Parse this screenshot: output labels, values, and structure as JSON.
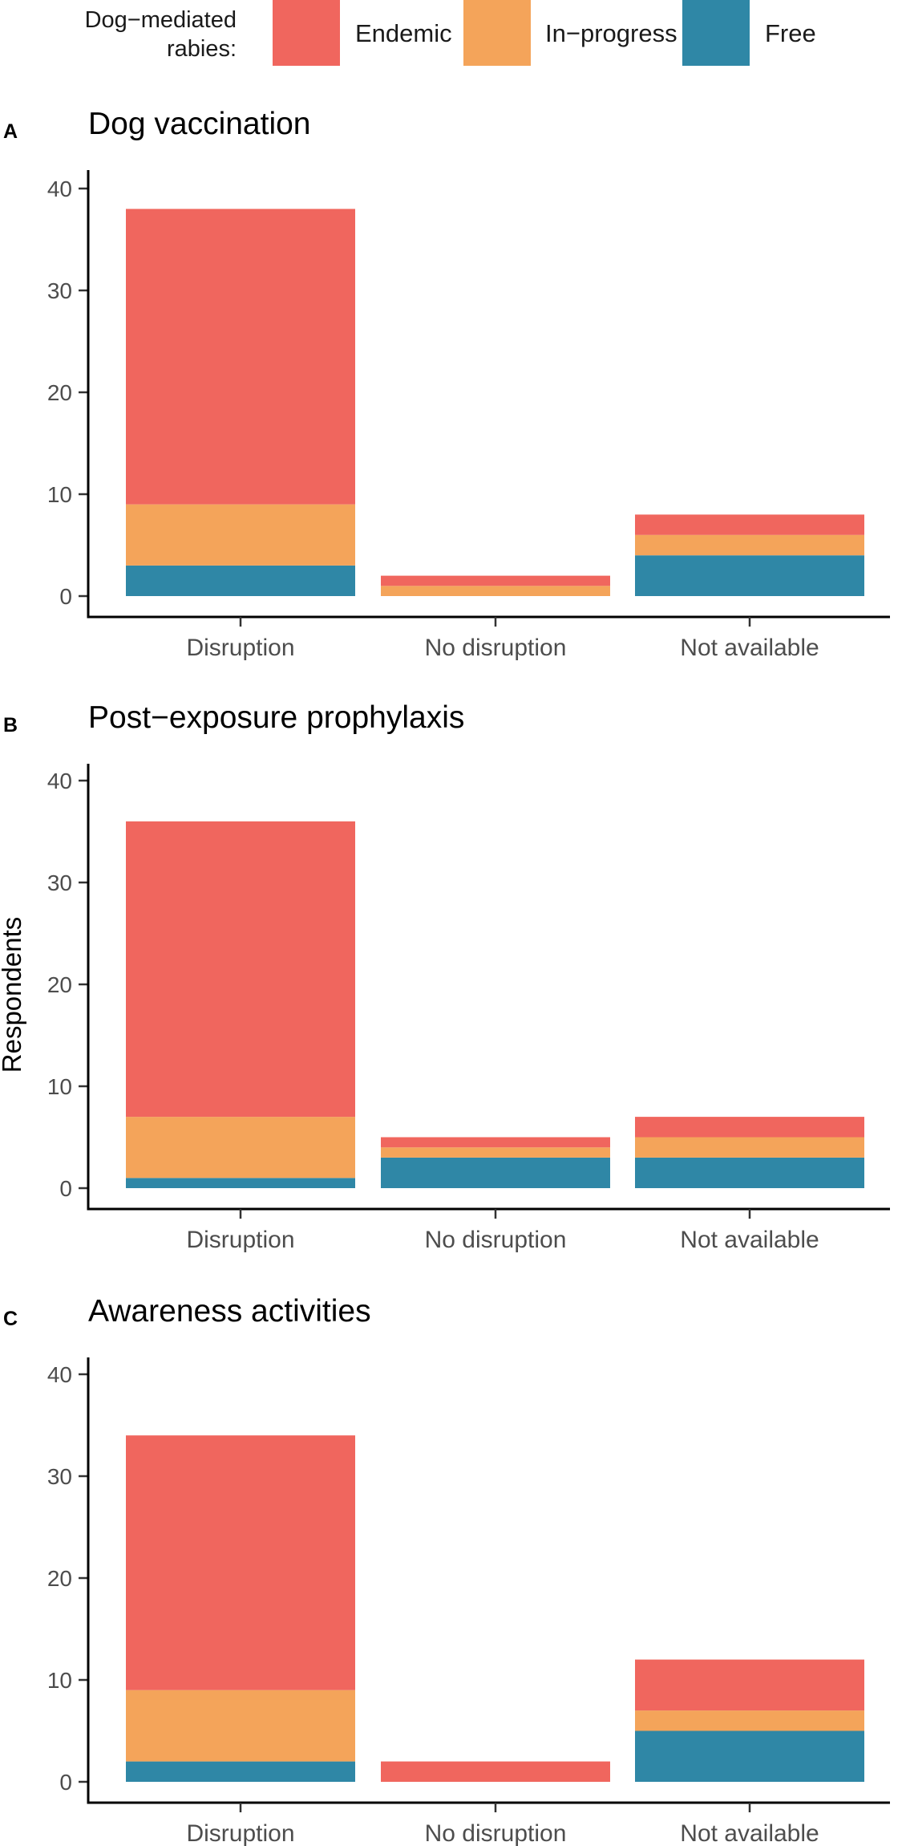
{
  "legend": {
    "title_line1": "Dog−mediated",
    "title_line2": "rabies:",
    "items": [
      {
        "label": "Endemic",
        "color": "#f0665e"
      },
      {
        "label": "In−progress",
        "color": "#f4a45a"
      },
      {
        "label": "Free",
        "color": "#2f87a6"
      }
    ]
  },
  "ylabel": "Respondents",
  "chart_data": [
    {
      "type": "bar",
      "stacked": true,
      "panel": "A",
      "title": "Dog vaccination",
      "categories": [
        "Disruption",
        "No disruption",
        "Not available"
      ],
      "series": [
        {
          "name": "Free",
          "values": [
            3,
            0,
            4
          ]
        },
        {
          "name": "In−progress",
          "values": [
            6,
            1,
            2
          ]
        },
        {
          "name": "Endemic",
          "values": [
            29,
            1,
            2
          ]
        }
      ],
      "ylim": [
        0,
        40
      ],
      "yticks": [
        "0",
        "10",
        "20",
        "30",
        "40"
      ]
    },
    {
      "type": "bar",
      "stacked": true,
      "panel": "B",
      "title": "Post−exposure prophylaxis",
      "categories": [
        "Disruption",
        "No disruption",
        "Not available"
      ],
      "series": [
        {
          "name": "Free",
          "values": [
            1,
            3,
            3
          ]
        },
        {
          "name": "In−progress",
          "values": [
            6,
            1,
            2
          ]
        },
        {
          "name": "Endemic",
          "values": [
            29,
            1,
            2
          ]
        }
      ],
      "ylim": [
        0,
        40
      ],
      "yticks": [
        "0",
        "10",
        "20",
        "30",
        "40"
      ]
    },
    {
      "type": "bar",
      "stacked": true,
      "panel": "C",
      "title": "Awareness activities",
      "categories": [
        "Disruption",
        "No disruption",
        "Not available"
      ],
      "series": [
        {
          "name": "Free",
          "values": [
            2,
            0,
            5
          ]
        },
        {
          "name": "In−progress",
          "values": [
            7,
            0,
            2
          ]
        },
        {
          "name": "Endemic",
          "values": [
            25,
            2,
            5
          ]
        }
      ],
      "ylim": [
        0,
        40
      ],
      "yticks": [
        "0",
        "10",
        "20",
        "30",
        "40"
      ]
    }
  ]
}
